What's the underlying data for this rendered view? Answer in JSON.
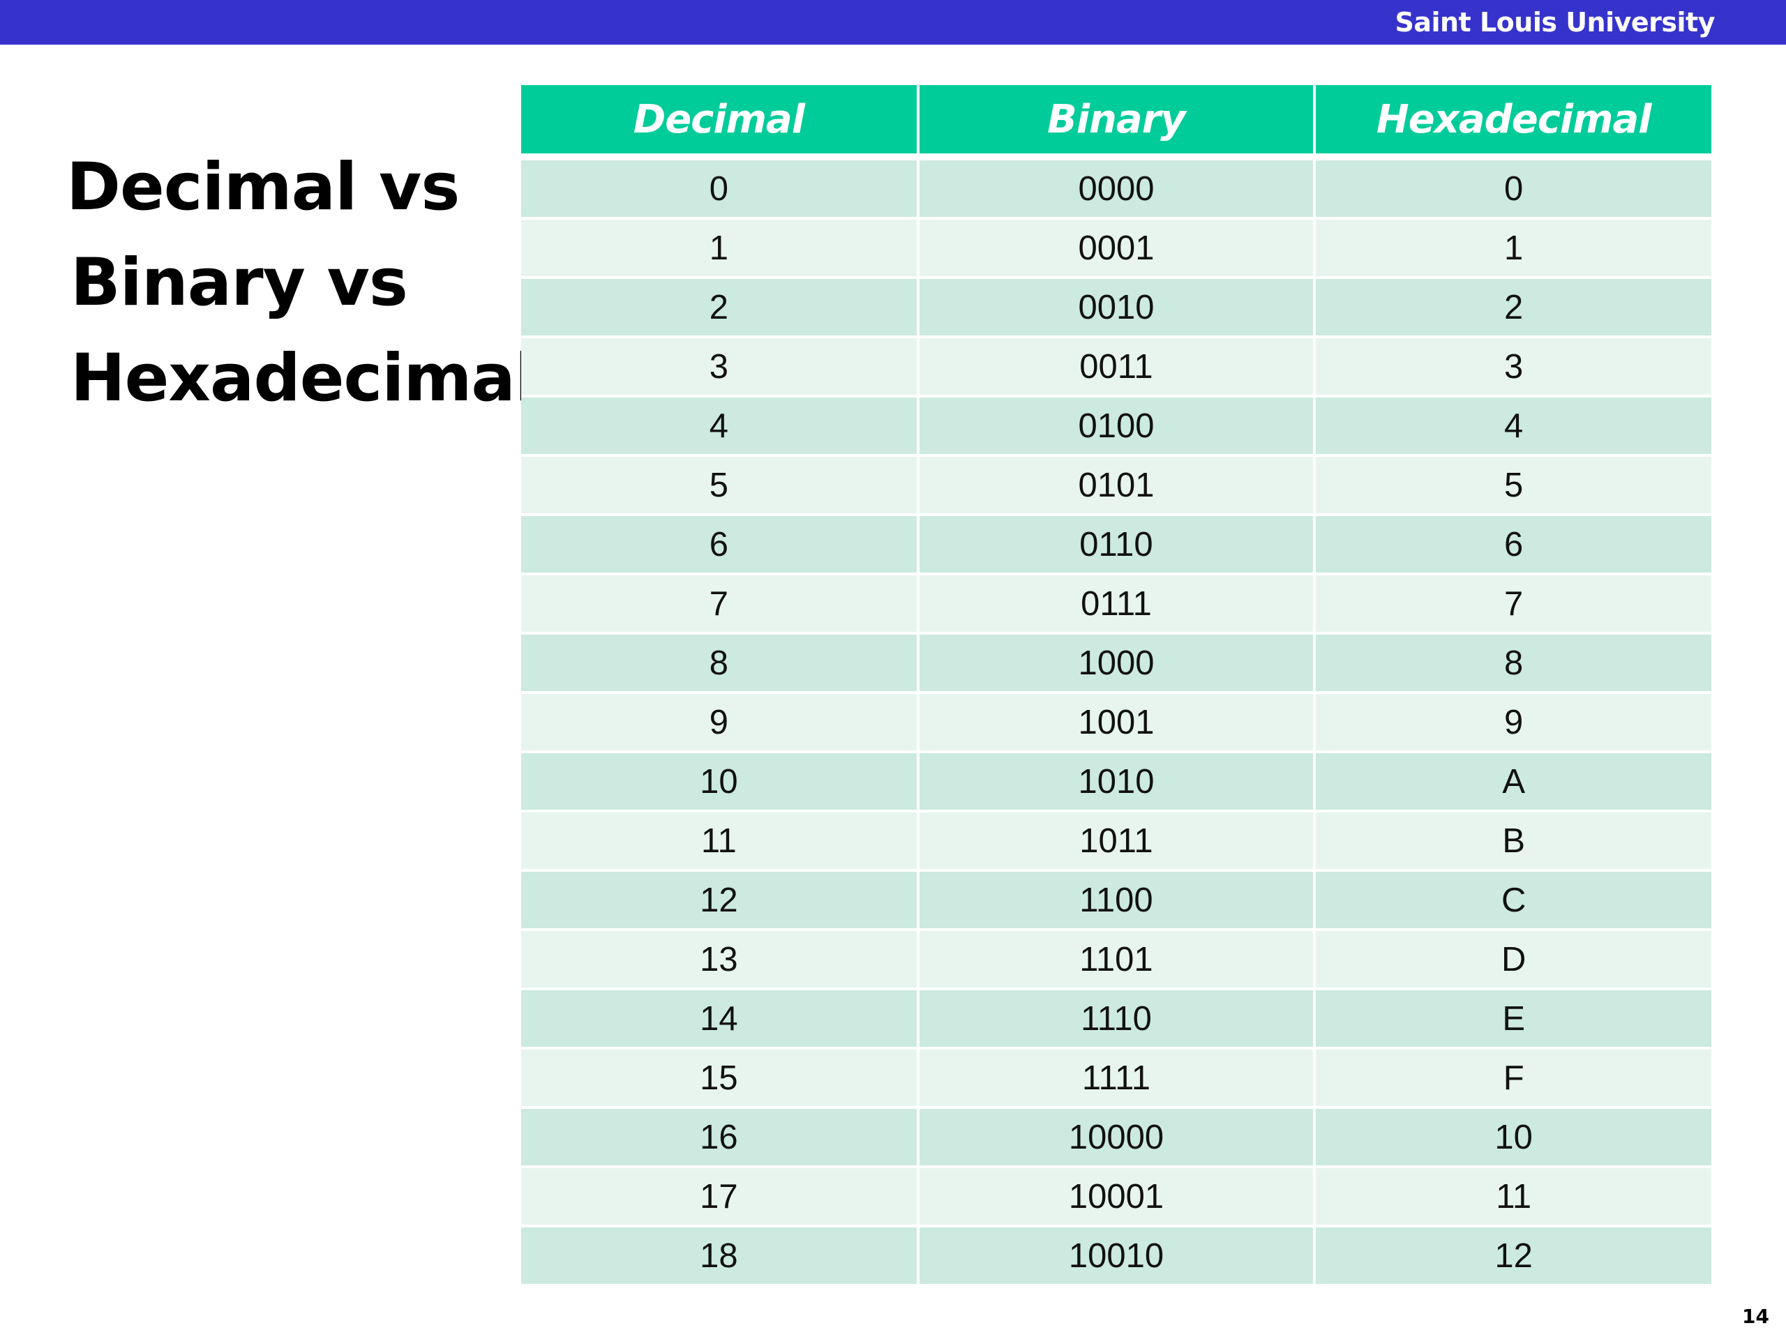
{
  "header": {
    "institution": "Saint Louis University",
    "bar_color": "#3633cc"
  },
  "title": {
    "line1": "Decimal vs",
    "line2": "Binary vs",
    "line3": "Hexadecimal"
  },
  "table": {
    "header_color": "#00cc9a",
    "row_color_a": "#cceadf",
    "row_color_b": "#e8f5ef",
    "columns": [
      "Decimal",
      "Binary",
      "Hexadecimal"
    ],
    "rows": [
      [
        "0",
        "0000",
        "0"
      ],
      [
        "1",
        "0001",
        "1"
      ],
      [
        "2",
        "0010",
        "2"
      ],
      [
        "3",
        "0011",
        "3"
      ],
      [
        "4",
        "0100",
        "4"
      ],
      [
        "5",
        "0101",
        "5"
      ],
      [
        "6",
        "0110",
        "6"
      ],
      [
        "7",
        "0111",
        "7"
      ],
      [
        "8",
        "1000",
        "8"
      ],
      [
        "9",
        "1001",
        "9"
      ],
      [
        "10",
        "1010",
        "A"
      ],
      [
        "11",
        "1011",
        "B"
      ],
      [
        "12",
        "1100",
        "C"
      ],
      [
        "13",
        "1101",
        "D"
      ],
      [
        "14",
        "1110",
        "E"
      ],
      [
        "15",
        "1111",
        "F"
      ],
      [
        "16",
        "10000",
        "10"
      ],
      [
        "17",
        "10001",
        "11"
      ],
      [
        "18",
        "10010",
        "12"
      ]
    ]
  },
  "footer": {
    "page_number": "14"
  }
}
